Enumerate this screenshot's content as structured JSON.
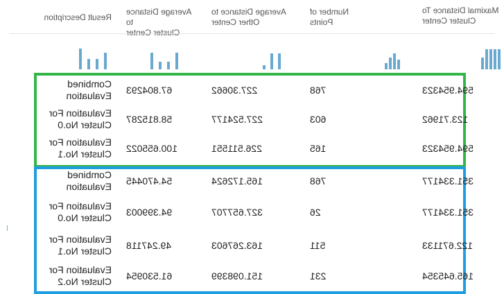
{
  "headers": {
    "result_description": "Result Description",
    "avg_cluster_center": [
      "Average Distance to",
      "Cluster Center"
    ],
    "avg_other_center": [
      "Average Distance to",
      "Other Center"
    ],
    "number_of_points": [
      "Number of",
      "Points"
    ],
    "max_cluster_center": [
      "Maximal Distance To",
      "Cluster Center"
    ]
  },
  "rows": [
    {
      "desc": [
        "Combined",
        "Evaluation"
      ],
      "avg_cluster": "67.804293",
      "avg_other": "227.30662",
      "points": "768",
      "max_cluster": "594.954323"
    },
    {
      "desc": [
        "Evaluation For",
        "Cluster No.0"
      ],
      "avg_cluster": "58.815287",
      "avg_other": "227.524177",
      "points": "603",
      "max_cluster": "123.71962"
    },
    {
      "desc": [
        "Evaluation For",
        "Cluster No.1"
      ],
      "avg_cluster": "100.655022",
      "avg_other": "226.511551",
      "points": "165",
      "max_cluster": "594.954323"
    },
    {
      "desc": [
        "Combined",
        "Evaluation"
      ],
      "avg_cluster": "54.470445",
      "avg_other": "165.172624",
      "points": "768",
      "max_cluster": "351.334177"
    },
    {
      "desc": [
        "Evaluation For",
        "Cluster No.0"
      ],
      "avg_cluster": "94.399003",
      "avg_other": "327.657707",
      "points": "26",
      "max_cluster": "351.334177"
    },
    {
      "desc": [
        "Evaluation For",
        "Cluster No.1"
      ],
      "avg_cluster": "49.247118",
      "avg_other": "163.267603",
      "points": "511",
      "max_cluster": "122.671133"
    },
    {
      "desc": [
        "Evaluation For",
        "Cluster No.2"
      ],
      "avg_cluster": "61.530954",
      "avg_other": "151.098399",
      "points": "231",
      "max_cluster": "165.645354"
    }
  ],
  "sparklines": {
    "result_description": [
      0.95,
      0.95,
      0.95,
      0.95,
      0.55
    ],
    "avg_cluster_center": [
      0.45,
      0.75,
      0.55,
      0.3
    ],
    "avg_other_center": [
      0.75,
      0.75,
      0.2
    ],
    "number_of_points": [
      0.8,
      0.35,
      0.35,
      0.8
    ],
    "max_cluster_center": [
      0.8,
      0.5,
      0.5,
      1.0
    ]
  },
  "colors": {
    "group1_border": "#33b54a",
    "group2_border": "#1e9ee0",
    "spark_bar": "#6aa9cf"
  }
}
